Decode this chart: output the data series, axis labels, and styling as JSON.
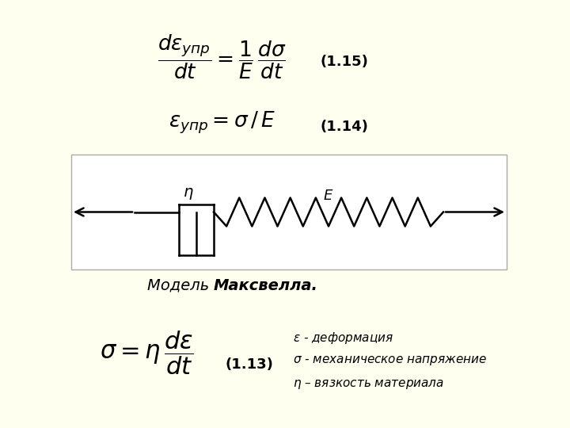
{
  "bg_color": "#fffff0",
  "title_italic": "Модель ",
  "title_bold": "Максвелла.",
  "eq1_label": "(1.13)",
  "eq2_label": "(1.14)",
  "eq3_label": "(1.15)",
  "legend_line1": "η – вязкость материала",
  "legend_line2": "σ - механическое напряжение",
  "legend_line3": "ε - деформация"
}
